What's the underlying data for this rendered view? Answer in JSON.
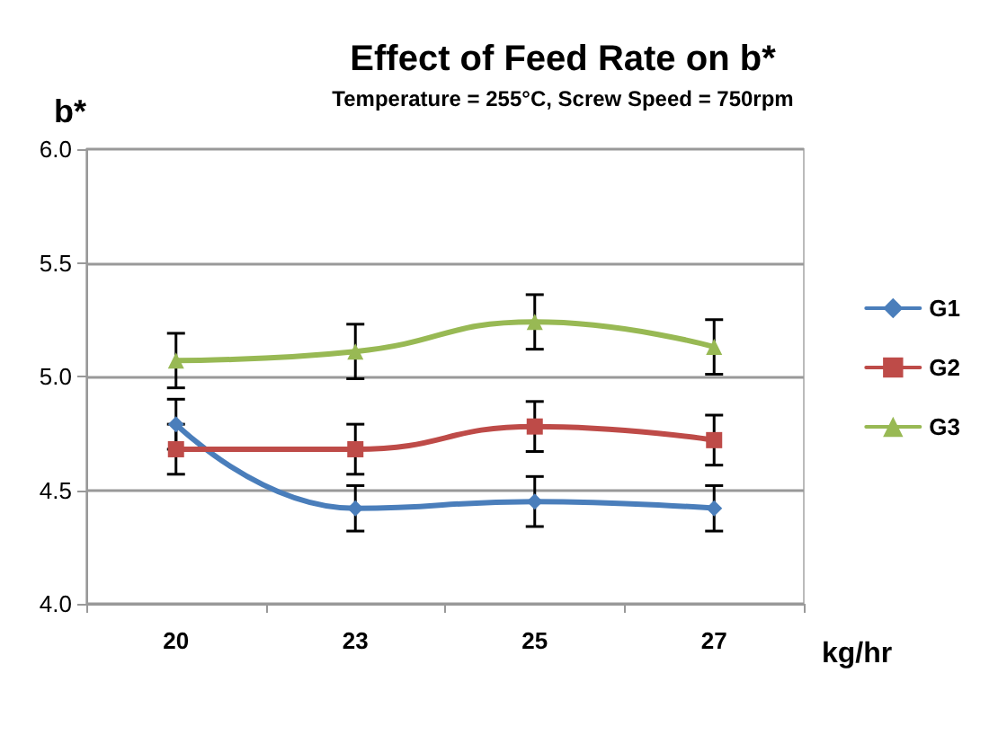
{
  "chart_data": {
    "type": "line",
    "title": "Effect of Feed Rate on b*",
    "subtitle": "Temperature = 255°C, Screw Speed = 750rpm",
    "xlabel": "kg/hr",
    "ylabel": "b*",
    "categories": [
      "20",
      "23",
      "25",
      "27"
    ],
    "ylim": [
      4.0,
      6.0
    ],
    "yticks": [
      {
        "value": 4,
        "label": "4.0"
      },
      4.5,
      {
        "value": 5,
        "label": "5.0"
      },
      5.5,
      {
        "value": 6,
        "label": "6.0"
      }
    ],
    "grid": "y",
    "legend": "right",
    "line_style": "solid",
    "series": [
      {
        "name": "G1",
        "color": "#4a7ebb",
        "marker": "diamond",
        "values": [
          4.79,
          4.42,
          4.45,
          4.42
        ],
        "errors": [
          0.11,
          0.1,
          0.11,
          0.1
        ]
      },
      {
        "name": "G2",
        "color": "#be4b48",
        "marker": "square",
        "values": [
          4.68,
          4.68,
          4.78,
          4.72
        ],
        "errors": [
          0.11,
          0.11,
          0.11,
          0.11
        ]
      },
      {
        "name": "G3",
        "color": "#98b954",
        "marker": "triangle",
        "values": [
          5.07,
          5.11,
          5.24,
          5.13
        ],
        "errors": [
          0.12,
          0.12,
          0.12,
          0.12
        ]
      }
    ]
  }
}
